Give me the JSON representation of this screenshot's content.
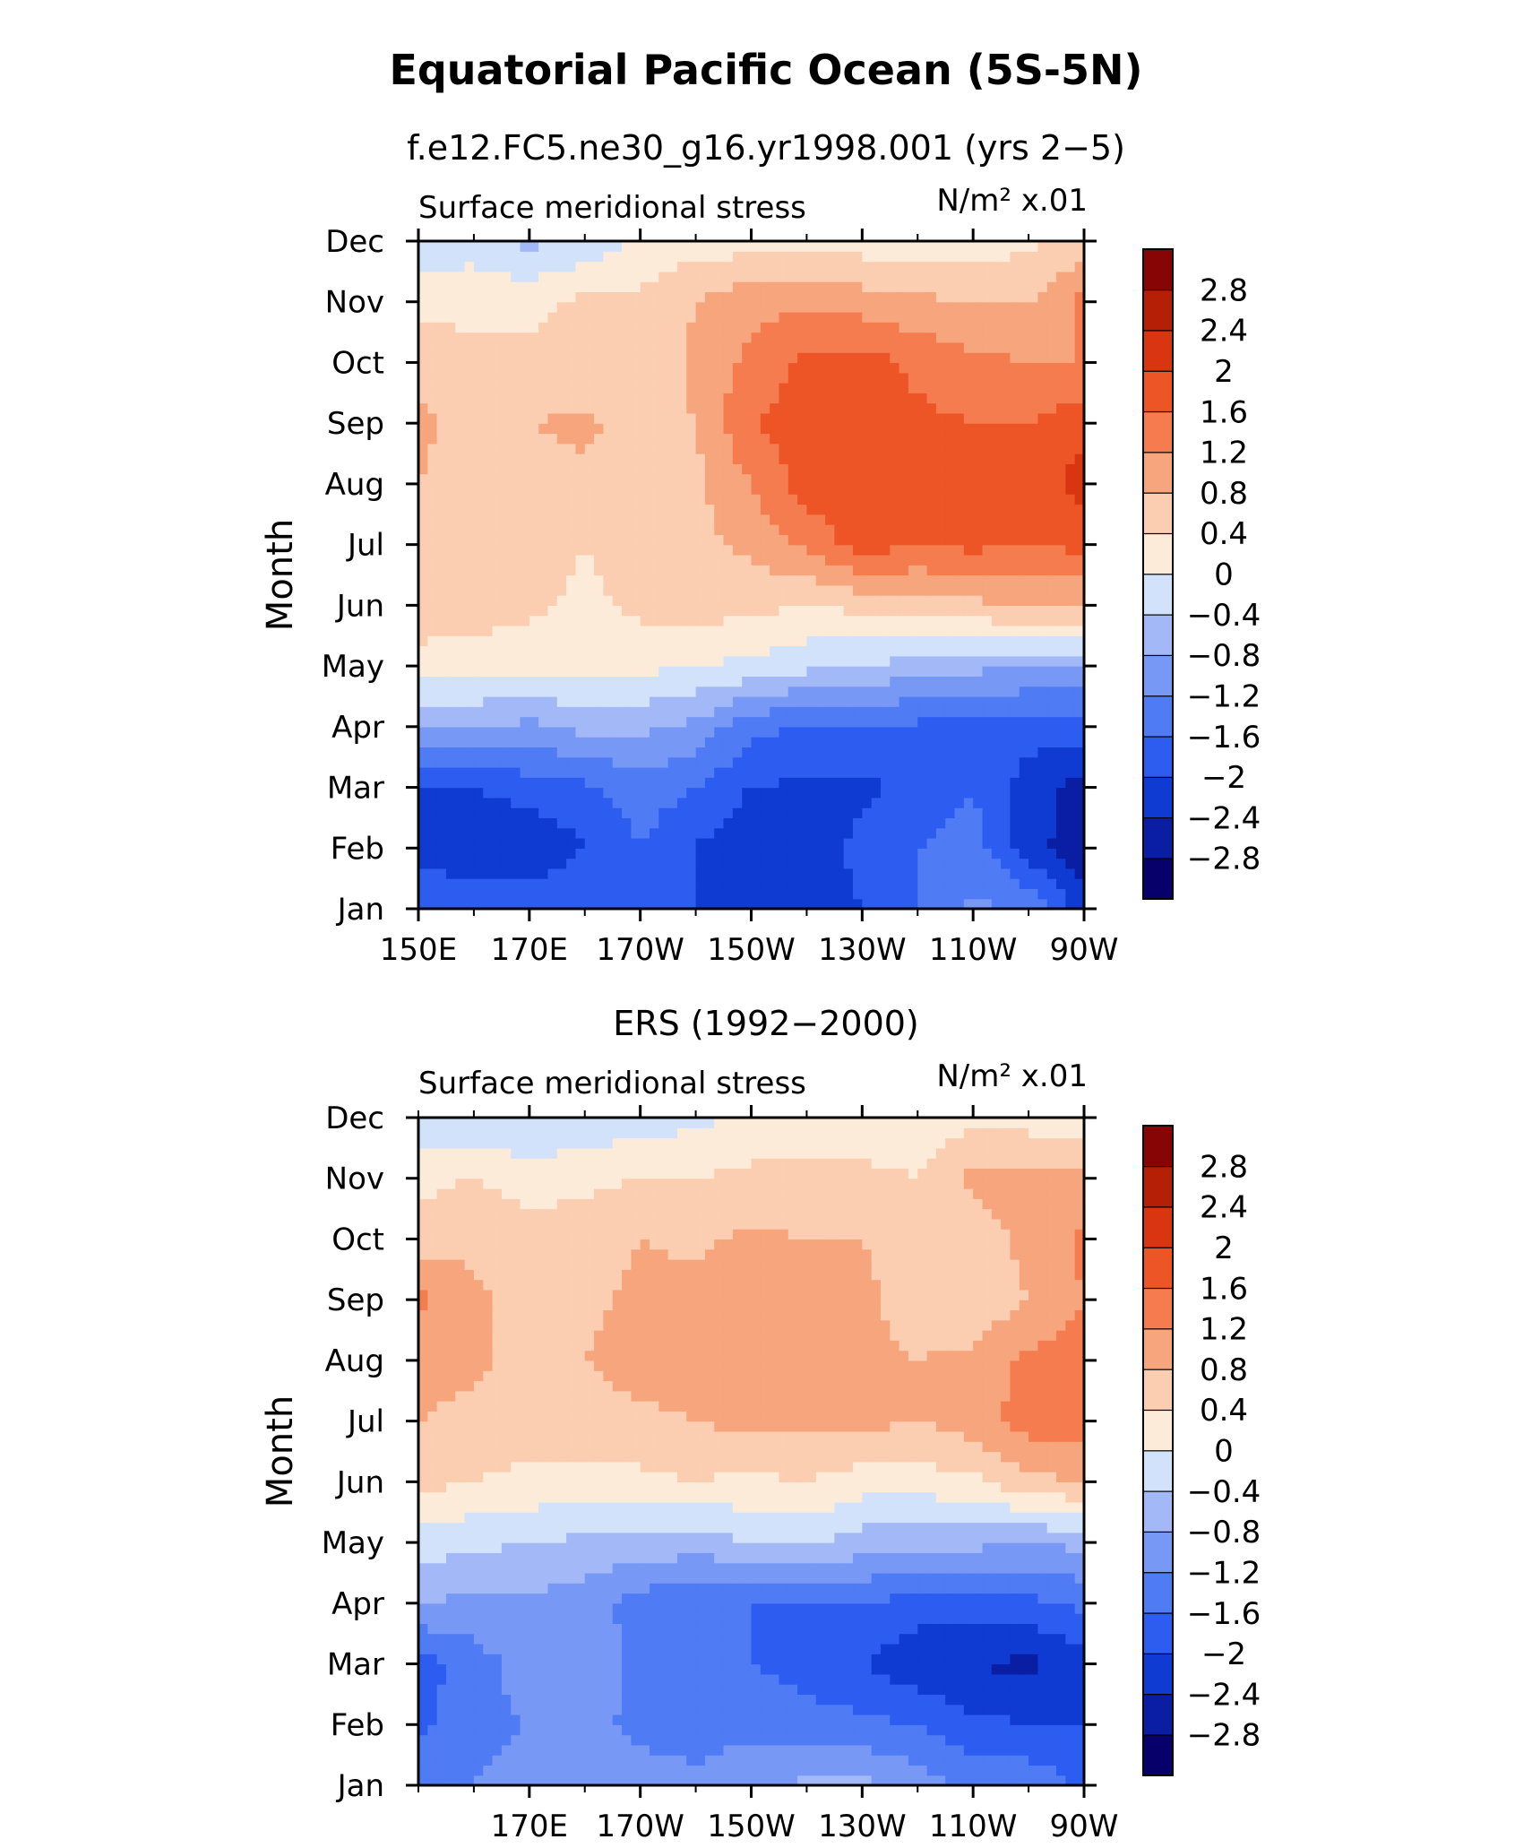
{
  "figure": {
    "title": "Equatorial Pacific Ocean (5S-5N)"
  },
  "colorbar": {
    "labels": [
      "2.8",
      "2.4",
      "2",
      "1.6",
      "1.2",
      "0.8",
      "0.4",
      "0",
      "−0.4",
      "−0.8",
      "−1.2",
      "−1.6",
      "−2",
      "−2.4",
      "−2.8"
    ],
    "colors": [
      "#08006a",
      "#0a1ea3",
      "#0f3bd2",
      "#2c5cf0",
      "#4f7bf5",
      "#7898f6",
      "#a3b8f7",
      "#d2e2fb",
      "#fdebd9",
      "#fbcdb1",
      "#f7a57d",
      "#f47c4e",
      "#ed5527",
      "#d93510",
      "#b41f06",
      "#870505"
    ]
  },
  "chart_data": [
    {
      "type": "heatmap",
      "subtitle": "f.e12.FC5.ne30_g16.yr1998.001 (yrs 2−5)",
      "label_left": "Surface meridional stress",
      "label_right": "N/m² x.01",
      "ylabel": "Month",
      "x_ticks": [
        "150E",
        "170E",
        "170W",
        "150W",
        "130W",
        "110W",
        "90W"
      ],
      "y_ticks": [
        "Jan",
        "Feb",
        "Mar",
        "Apr",
        "May",
        "Jun",
        "Jul",
        "Aug",
        "Sep",
        "Oct",
        "Nov",
        "Dec"
      ],
      "x_range": [
        "150E",
        "90W"
      ],
      "y_range": [
        "Jan",
        "Dec"
      ],
      "levels": [
        -2.8,
        -2.4,
        -2.0,
        -1.6,
        -1.2,
        -0.8,
        -0.4,
        0,
        0.4,
        0.8,
        1.2,
        1.6,
        2.0,
        2.4,
        2.8
      ],
      "x_lons": [
        150,
        160,
        170,
        180,
        190,
        200,
        210,
        220,
        230,
        240,
        250,
        260,
        270
      ],
      "months": [
        "Jan",
        "Feb",
        "Mar",
        "Apr",
        "May",
        "Jun",
        "Jul",
        "Aug",
        "Sep",
        "Oct",
        "Nov",
        "Dec"
      ],
      "z": [
        [
          -1.6,
          -1.6,
          -1.7,
          -1.6,
          -1.6,
          -2.0,
          -2.2,
          -2.3,
          -2.0,
          -1.6,
          -1.1,
          -1.3,
          -2.2
        ],
        [
          -2.2,
          -2.4,
          -2.4,
          -2.0,
          -1.6,
          -2.0,
          -2.4,
          -2.2,
          -1.9,
          -1.6,
          -1.4,
          -2.2,
          -2.7
        ],
        [
          -2.0,
          -2.0,
          -1.8,
          -1.7,
          -1.4,
          -1.6,
          -2.0,
          -2.1,
          -2.1,
          -1.9,
          -1.6,
          -2.2,
          -2.6
        ],
        [
          -0.7,
          -0.8,
          -0.9,
          -0.7,
          -0.7,
          -0.9,
          -1.5,
          -1.6,
          -1.6,
          -1.7,
          -1.7,
          -1.8,
          -1.8
        ],
        [
          0.2,
          0.2,
          0.1,
          0.2,
          0.1,
          0.0,
          -0.1,
          -0.3,
          -0.4,
          -0.6,
          -0.7,
          -0.8,
          -0.8
        ],
        [
          0.7,
          0.6,
          0.5,
          0.3,
          0.5,
          0.6,
          0.5,
          0.4,
          0.5,
          0.6,
          0.7,
          0.9,
          0.8
        ],
        [
          0.7,
          0.6,
          0.6,
          0.4,
          0.6,
          0.7,
          0.9,
          1.3,
          1.8,
          1.6,
          1.7,
          1.6,
          1.7
        ],
        [
          0.8,
          0.6,
          0.6,
          0.7,
          0.6,
          0.7,
          1.2,
          1.8,
          1.9,
          1.7,
          1.6,
          1.7,
          2.2
        ],
        [
          0.9,
          0.6,
          0.8,
          0.9,
          0.6,
          0.8,
          1.6,
          1.8,
          1.7,
          1.7,
          1.6,
          1.6,
          1.9
        ],
        [
          0.6,
          0.5,
          0.5,
          0.5,
          0.5,
          0.9,
          1.3,
          1.7,
          1.8,
          1.5,
          1.3,
          1.2,
          1.2
        ],
        [
          0.3,
          0.3,
          0.3,
          0.5,
          0.5,
          0.8,
          1.1,
          1.1,
          1.0,
          0.9,
          0.8,
          0.8,
          1.3
        ],
        [
          -0.3,
          -0.2,
          -0.5,
          -0.3,
          0.1,
          0.2,
          0.2,
          0.2,
          0.2,
          0.1,
          0.2,
          0.3,
          0.6
        ]
      ]
    },
    {
      "type": "heatmap",
      "subtitle": "ERS (1992−2000)",
      "label_left": "Surface meridional stress",
      "label_right": "N/m² x.01",
      "ylabel": "Month",
      "x_ticks": [
        "170E",
        "170W",
        "150W",
        "130W",
        "110W",
        "90W"
      ],
      "y_ticks": [
        "Jan",
        "Feb",
        "Mar",
        "Apr",
        "May",
        "Jun",
        "Jul",
        "Aug",
        "Sep",
        "Oct",
        "Nov",
        "Dec"
      ],
      "x_range": [
        "150E",
        "90W"
      ],
      "y_range": [
        "Jan",
        "Dec"
      ],
      "levels": [
        -2.8,
        -2.4,
        -2.0,
        -1.6,
        -1.2,
        -0.8,
        -0.4,
        0,
        0.4,
        0.8,
        1.2,
        1.6,
        2.0,
        2.4,
        2.8
      ],
      "x_lons": [
        150,
        160,
        170,
        180,
        190,
        200,
        210,
        220,
        230,
        240,
        250,
        260,
        270
      ],
      "months": [
        "Jan",
        "Feb",
        "Mar",
        "Apr",
        "May",
        "Jun",
        "Jul",
        "Aug",
        "Sep",
        "Oct",
        "Nov",
        "Dec"
      ],
      "z": [
        [
          -1.3,
          -1.2,
          -1.1,
          -1.0,
          -1.0,
          -1.1,
          -0.9,
          -0.7,
          -0.7,
          -1.0,
          -1.3,
          -1.3,
          -1.7
        ],
        [
          -1.7,
          -1.3,
          -1.2,
          -1.1,
          -1.3,
          -1.4,
          -1.3,
          -1.4,
          -1.5,
          -1.6,
          -1.9,
          -2.0,
          -2.0
        ],
        [
          -1.8,
          -1.4,
          -1.0,
          -0.9,
          -1.3,
          -1.5,
          -1.6,
          -1.8,
          -2.0,
          -2.3,
          -2.4,
          -2.5,
          -2.2
        ],
        [
          -0.8,
          -0.9,
          -0.9,
          -1.0,
          -1.4,
          -1.6,
          -1.6,
          -1.6,
          -1.6,
          -1.8,
          -1.8,
          -1.7,
          -1.5
        ],
        [
          -0.2,
          -0.3,
          -0.4,
          -0.5,
          -0.5,
          -0.6,
          -0.4,
          -0.3,
          -0.6,
          -0.7,
          -0.7,
          -0.8,
          -0.7
        ],
        [
          0.5,
          0.4,
          0.3,
          0.3,
          0.3,
          0.4,
          0.3,
          0.4,
          0.2,
          0.2,
          0.3,
          0.7,
          0.8
        ],
        [
          0.8,
          0.7,
          0.6,
          0.6,
          0.7,
          0.8,
          0.9,
          0.9,
          0.9,
          0.8,
          1.0,
          1.4,
          1.4
        ],
        [
          0.9,
          0.9,
          0.6,
          0.8,
          1.0,
          1.0,
          1.0,
          1.0,
          0.9,
          0.8,
          0.9,
          1.3,
          1.4
        ],
        [
          1.3,
          0.9,
          0.6,
          0.7,
          0.9,
          1.0,
          1.0,
          0.9,
          0.9,
          0.6,
          0.5,
          0.8,
          1.2
        ],
        [
          0.6,
          0.7,
          0.6,
          0.6,
          0.8,
          0.7,
          0.9,
          0.8,
          0.8,
          0.6,
          0.6,
          0.9,
          1.3
        ],
        [
          0.3,
          0.4,
          0.2,
          0.3,
          0.4,
          0.4,
          0.5,
          0.5,
          0.5,
          0.4,
          0.9,
          1.0,
          0.9
        ],
        [
          -0.3,
          -0.3,
          -0.4,
          -0.3,
          -0.2,
          -0.1,
          0.1,
          0.2,
          0.2,
          0.1,
          0.3,
          0.2,
          0.2
        ]
      ]
    }
  ]
}
